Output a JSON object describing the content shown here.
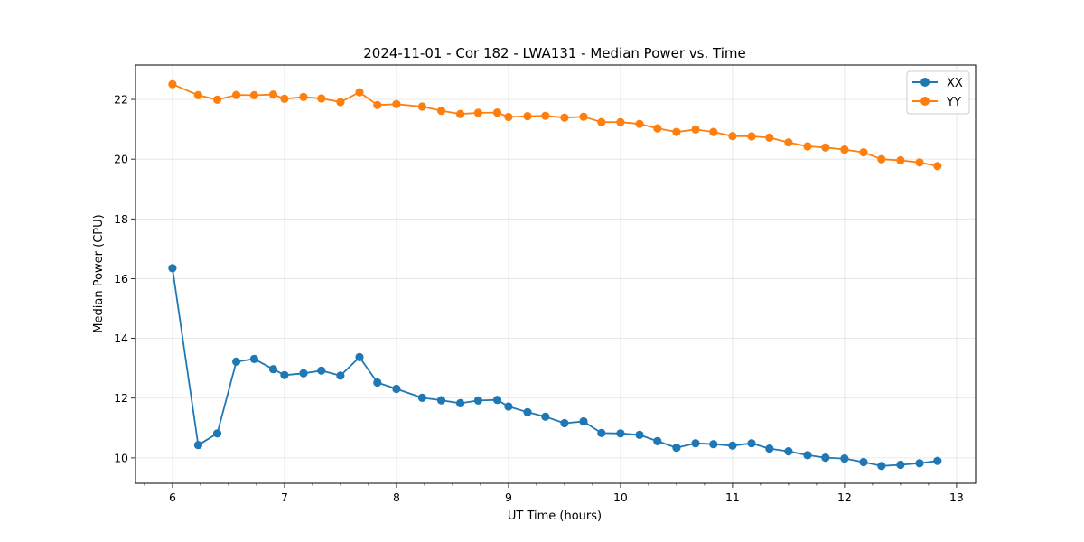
{
  "chart_data": {
    "type": "line",
    "title": "2024-11-01 - Cor 182 - LWA131 - Median Power vs. Time",
    "xlabel": "UT Time (hours)",
    "ylabel": "Median Power (CPU)",
    "xlim": [
      5.67,
      13.17
    ],
    "ylim": [
      9.15,
      23.15
    ],
    "xticks": [
      6,
      7,
      8,
      9,
      10,
      11,
      12,
      13
    ],
    "yticks": [
      10,
      12,
      14,
      16,
      18,
      20,
      22
    ],
    "grid": true,
    "legend_position": "top-right",
    "x": [
      6.0,
      6.23,
      6.4,
      6.57,
      6.73,
      6.9,
      7.0,
      7.17,
      7.33,
      7.5,
      7.67,
      7.83,
      8.0,
      8.23,
      8.4,
      8.57,
      8.73,
      8.9,
      9.0,
      9.17,
      9.33,
      9.5,
      9.67,
      9.83,
      10.0,
      10.17,
      10.33,
      10.5,
      10.67,
      10.83,
      11.0,
      11.17,
      11.33,
      11.5,
      11.67,
      11.83,
      12.0,
      12.17,
      12.33,
      12.5,
      12.67,
      12.83
    ],
    "series": [
      {
        "name": "XX",
        "color": "#1f77b4",
        "values": [
          16.35,
          10.43,
          10.82,
          13.22,
          13.31,
          12.97,
          12.77,
          12.83,
          12.92,
          12.75,
          13.37,
          12.52,
          12.31,
          12.01,
          11.93,
          11.83,
          11.92,
          11.94,
          11.72,
          11.53,
          11.38,
          11.16,
          11.22,
          10.83,
          10.82,
          10.77,
          10.56,
          10.34,
          10.49,
          10.46,
          10.41,
          10.49,
          10.31,
          10.22,
          10.09,
          10.01,
          9.98,
          9.86,
          9.73,
          9.77,
          9.82,
          9.9
        ]
      },
      {
        "name": "YY",
        "color": "#ff7f0e",
        "values": [
          22.51,
          22.14,
          21.99,
          22.15,
          22.14,
          22.16,
          22.02,
          22.08,
          22.03,
          21.91,
          22.24,
          21.81,
          21.84,
          21.76,
          21.62,
          21.51,
          21.55,
          21.56,
          21.41,
          21.44,
          21.45,
          21.39,
          21.42,
          21.24,
          21.24,
          21.18,
          21.03,
          20.91,
          20.99,
          20.91,
          20.77,
          20.76,
          20.72,
          20.56,
          20.43,
          20.39,
          20.32,
          20.23,
          20.0,
          19.96,
          19.89,
          19.77
        ]
      }
    ]
  }
}
